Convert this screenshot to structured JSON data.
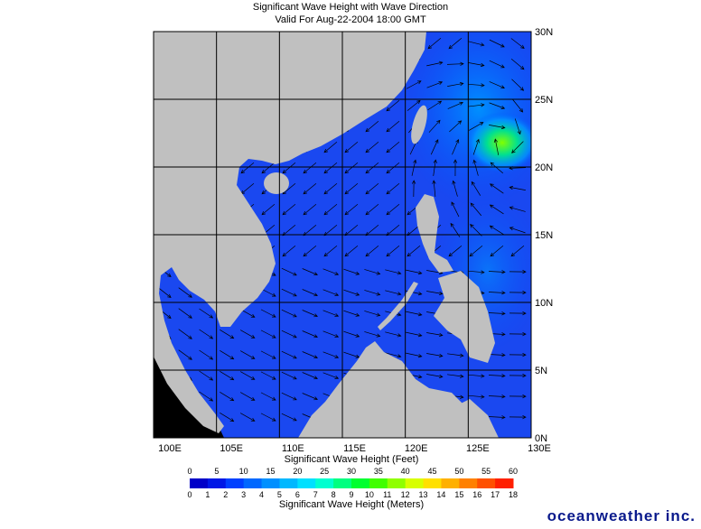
{
  "header": {
    "title": "Significant Wave Height with Wave Direction",
    "subtitle": "Valid For Aug-22-2004 18:00 GMT"
  },
  "map": {
    "lon_range": [
      100,
      130
    ],
    "lat_range": [
      0,
      30
    ],
    "lon_ticks": [
      {
        "value": 100,
        "label": "100E"
      },
      {
        "value": 105,
        "label": "105E"
      },
      {
        "value": 110,
        "label": "110E"
      },
      {
        "value": 115,
        "label": "115E"
      },
      {
        "value": 120,
        "label": "120E"
      },
      {
        "value": 125,
        "label": "125E"
      },
      {
        "value": 130,
        "label": "130E"
      }
    ],
    "lat_ticks": [
      {
        "value": 0,
        "label": "0N"
      },
      {
        "value": 5,
        "label": "5N"
      },
      {
        "value": 10,
        "label": "10N"
      },
      {
        "value": 15,
        "label": "15N"
      },
      {
        "value": 20,
        "label": "20N"
      },
      {
        "value": 25,
        "label": "25N"
      },
      {
        "value": 30,
        "label": "30N"
      }
    ]
  },
  "colorbar": {
    "feet_title": "Significant Wave Height (Feet)",
    "meters_title": "Significant Wave Height (Meters)",
    "feet_range": [
      0,
      60
    ],
    "meters_range": [
      0,
      18
    ],
    "feet_ticks": [
      0,
      5,
      10,
      15,
      20,
      25,
      30,
      35,
      40,
      45,
      50,
      55,
      60
    ],
    "meters_ticks": [
      0,
      1,
      2,
      3,
      4,
      5,
      6,
      7,
      8,
      9,
      10,
      11,
      12,
      13,
      14,
      15,
      16,
      17,
      18
    ],
    "colors": [
      "#0000c8",
      "#0018e6",
      "#0040ff",
      "#0068ff",
      "#0090ff",
      "#00b8ff",
      "#00e0ff",
      "#00ffd0",
      "#00ff80",
      "#00ff30",
      "#40ff00",
      "#90ff00",
      "#d8ff00",
      "#ffe000",
      "#ffb000",
      "#ff8000",
      "#ff5000",
      "#ff2000"
    ]
  },
  "footer": {
    "logo": "oceanweather inc."
  }
}
